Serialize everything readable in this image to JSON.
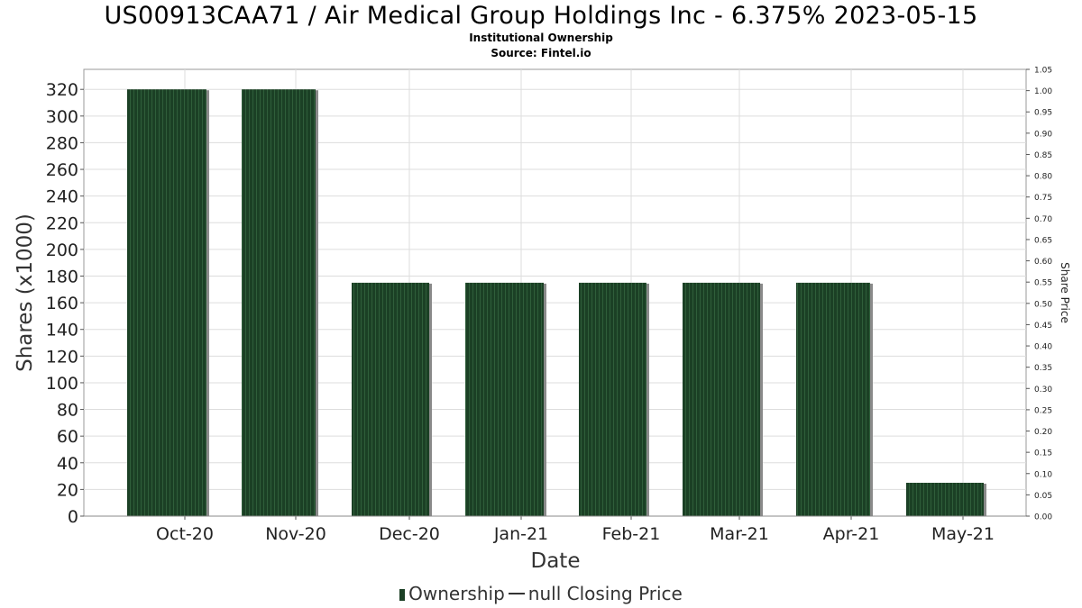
{
  "chart_data": {
    "type": "bar",
    "title": "US00913CAA71 / Air Medical Group Holdings Inc - 6.375% 2023-05-15",
    "subtitle": "Institutional Ownership",
    "source": "Source: Fintel.io",
    "xlabel": "Date",
    "ylabel": "Shares (x1000)",
    "y2label": "Share Price",
    "categories": [
      "Oct-20",
      "Nov-20",
      "Dec-20",
      "Jan-21",
      "Feb-21",
      "Mar-21",
      "Apr-21",
      "May-21"
    ],
    "series": [
      {
        "name": "Ownership",
        "values": [
          320,
          320,
          175,
          175,
          175,
          175,
          175,
          25
        ]
      }
    ],
    "ylim": [
      0,
      335
    ],
    "y_ticks": [
      0,
      20,
      40,
      60,
      80,
      100,
      120,
      140,
      160,
      180,
      200,
      220,
      240,
      260,
      280,
      300,
      320
    ],
    "y2lim": [
      0,
      1.05
    ],
    "y2_ticks": [
      "0.00",
      "0.05",
      "0.10",
      "0.15",
      "0.20",
      "0.25",
      "0.30",
      "0.35",
      "0.40",
      "0.45",
      "0.50",
      "0.55",
      "0.60",
      "0.65",
      "0.70",
      "0.75",
      "0.80",
      "0.85",
      "0.90",
      "0.95",
      "1.00",
      "1.05"
    ],
    "grid": true,
    "legend_position": "bottom",
    "legend": [
      "Ownership",
      "null Closing Price"
    ],
    "colors": {
      "bar": "#1b4025",
      "bar_stripe": "#2f5e3a",
      "bar_shadow": "#8a8a8a",
      "grid": "#dddddd",
      "axis": "#999999"
    }
  }
}
